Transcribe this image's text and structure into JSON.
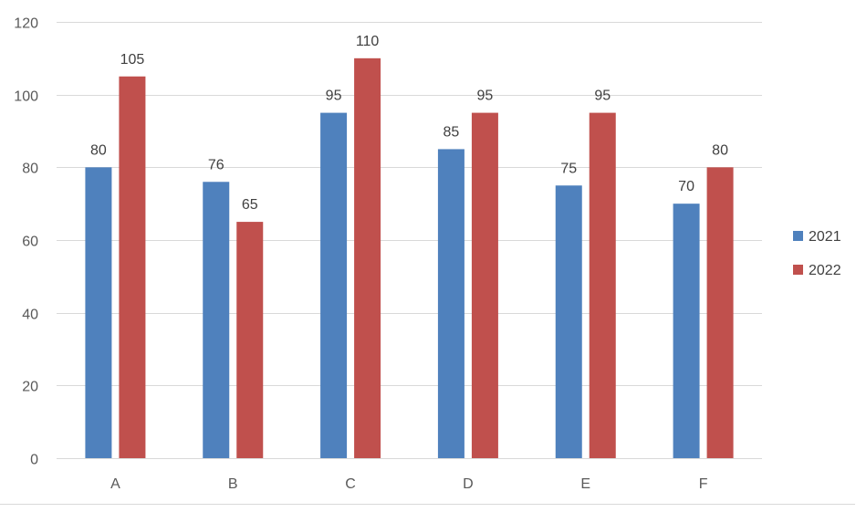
{
  "chart_data": {
    "type": "bar",
    "title": "",
    "xlabel": "",
    "ylabel": "",
    "categories": [
      "A",
      "B",
      "C",
      "D",
      "E",
      "F"
    ],
    "series": [
      {
        "name": "2021",
        "color": "#4f81bd",
        "values": [
          80,
          76,
          95,
          85,
          75,
          70
        ]
      },
      {
        "name": "2022",
        "color": "#c0504d",
        "values": [
          105,
          65,
          110,
          95,
          95,
          80
        ]
      }
    ],
    "ylim": [
      0,
      120
    ],
    "yticks": [
      0,
      20,
      40,
      60,
      80,
      100,
      120
    ],
    "grid": true,
    "legend": "right",
    "data_labels": true
  }
}
